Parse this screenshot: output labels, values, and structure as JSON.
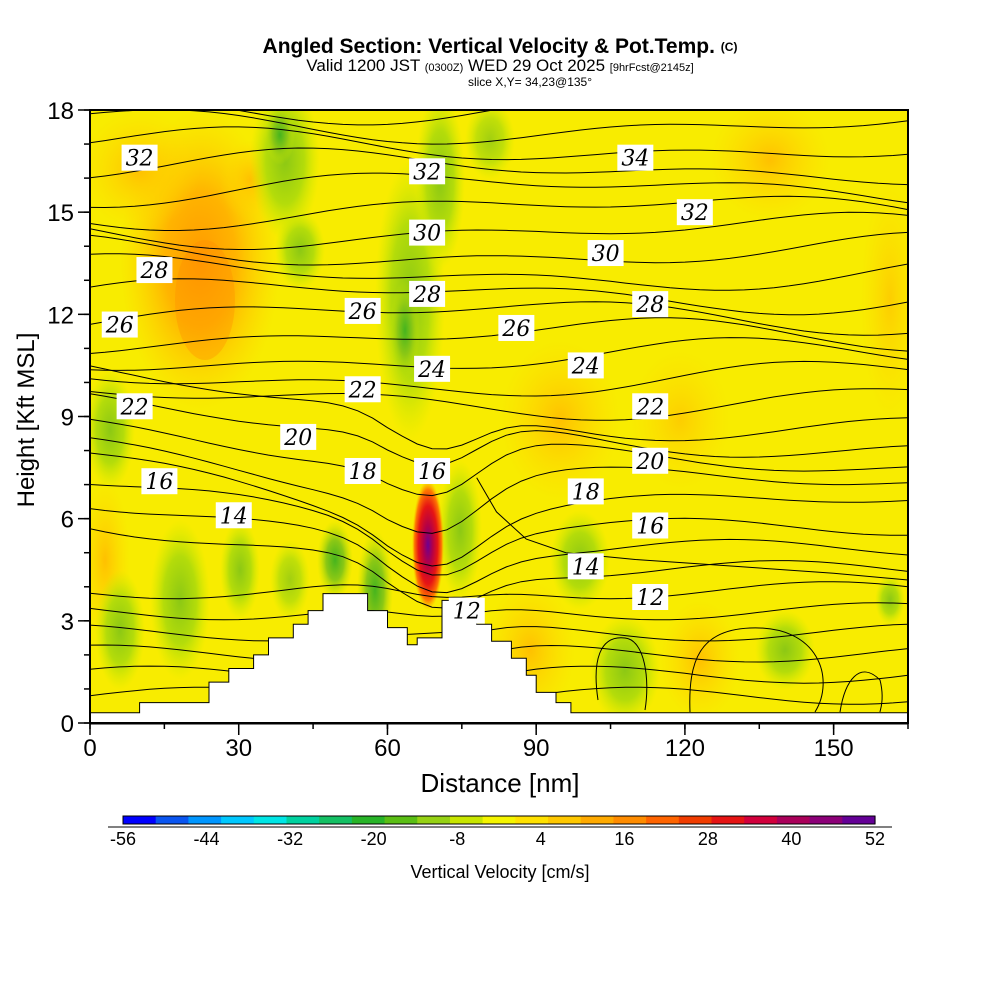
{
  "title": "Angled Section: Vertical Velocity & Pot.Temp.",
  "title_suffix": "(C)",
  "subtitle_prefix": "Valid 1200 JST",
  "subtitle_utc": "(0300Z)",
  "subtitle_date": "WED 29 Oct 2025",
  "subtitle_run": "[9hrFcst@2145z]",
  "slice_label": "slice X,Y= 34,23@135°",
  "chart_data": {
    "type": "heatmap",
    "title": "Angled Section: Vertical Velocity & Pot.Temp.",
    "xlabel": "Distance [nm]",
    "ylabel": "Height [Kft MSL]",
    "xlim": [
      0,
      165
    ],
    "ylim": [
      0,
      18
    ],
    "x_ticks": [
      "0",
      "30",
      "60",
      "90",
      "120",
      "150"
    ],
    "y_ticks": [
      "0",
      "3",
      "6",
      "9",
      "12",
      "15",
      "18"
    ],
    "colorbar": {
      "title": "Vertical Velocity [cm/s]",
      "tick_labels": [
        "-56",
        "-44",
        "-32",
        "-20",
        "-8",
        "4",
        "16",
        "28",
        "40",
        "52"
      ],
      "colors": [
        "#0000ff",
        "#0a55f0",
        "#0096ff",
        "#00c8ff",
        "#00e6e6",
        "#00d2a0",
        "#14c064",
        "#28b428",
        "#5abe14",
        "#96d214",
        "#c8e600",
        "#f5f500",
        "#ffe100",
        "#ffc800",
        "#ffaa00",
        "#ff8c00",
        "#ff6400",
        "#f03c00",
        "#e61414",
        "#d2003c",
        "#aa005a",
        "#8c0078",
        "#640096"
      ]
    },
    "terrain": [
      [
        0,
        0.3
      ],
      [
        10,
        0.3
      ],
      [
        10,
        0.6
      ],
      [
        24,
        0.6
      ],
      [
        24,
        1.2
      ],
      [
        28,
        1.2
      ],
      [
        28,
        1.6
      ],
      [
        33,
        1.6
      ],
      [
        33,
        2.0
      ],
      [
        36,
        2.0
      ],
      [
        36,
        2.5
      ],
      [
        41,
        2.5
      ],
      [
        41,
        2.9
      ],
      [
        44,
        2.9
      ],
      [
        44,
        3.3
      ],
      [
        47,
        3.3
      ],
      [
        47,
        3.8
      ],
      [
        56,
        3.8
      ],
      [
        56,
        3.3
      ],
      [
        60,
        3.3
      ],
      [
        60,
        2.8
      ],
      [
        64,
        2.8
      ],
      [
        64,
        2.3
      ],
      [
        66,
        2.3
      ],
      [
        66,
        2.5
      ],
      [
        71,
        2.5
      ],
      [
        71,
        3.6
      ],
      [
        78,
        3.6
      ],
      [
        78,
        2.9
      ],
      [
        81,
        2.9
      ],
      [
        81,
        2.4
      ],
      [
        85,
        2.4
      ],
      [
        85,
        1.9
      ],
      [
        88,
        1.9
      ],
      [
        88,
        1.4
      ],
      [
        90,
        1.4
      ],
      [
        90,
        0.9
      ],
      [
        94,
        0.9
      ],
      [
        94,
        0.6
      ],
      [
        97,
        0.6
      ],
      [
        97,
        0.3
      ],
      [
        165,
        0.3
      ]
    ],
    "contour_labels": [
      {
        "text": "32",
        "x": 10,
        "y": 16.6
      },
      {
        "text": "28",
        "x": 13,
        "y": 13.3
      },
      {
        "text": "26",
        "x": 6,
        "y": 11.7
      },
      {
        "text": "22",
        "x": 9,
        "y": 9.3
      },
      {
        "text": "20",
        "x": 42,
        "y": 8.4
      },
      {
        "text": "16",
        "x": 14,
        "y": 7.1
      },
      {
        "text": "14",
        "x": 29,
        "y": 6.1
      },
      {
        "text": "26",
        "x": 55,
        "y": 12.1
      },
      {
        "text": "22",
        "x": 55,
        "y": 9.8
      },
      {
        "text": "18",
        "x": 55,
        "y": 7.4
      },
      {
        "text": "32",
        "x": 68,
        "y": 16.2
      },
      {
        "text": "30",
        "x": 68,
        "y": 14.4
      },
      {
        "text": "28",
        "x": 68,
        "y": 12.6
      },
      {
        "text": "24",
        "x": 69,
        "y": 10.4
      },
      {
        "text": "16",
        "x": 69,
        "y": 7.4
      },
      {
        "text": "12",
        "x": 76,
        "y": 3.3
      },
      {
        "text": "26",
        "x": 86,
        "y": 11.6
      },
      {
        "text": "34",
        "x": 110,
        "y": 16.6
      },
      {
        "text": "32",
        "x": 122,
        "y": 15.0
      },
      {
        "text": "30",
        "x": 104,
        "y": 13.8
      },
      {
        "text": "28",
        "x": 113,
        "y": 12.3
      },
      {
        "text": "24",
        "x": 100,
        "y": 10.5
      },
      {
        "text": "22",
        "x": 113,
        "y": 9.3
      },
      {
        "text": "20",
        "x": 113,
        "y": 7.7
      },
      {
        "text": "18",
        "x": 100,
        "y": 6.8
      },
      {
        "text": "16",
        "x": 113,
        "y": 5.8
      },
      {
        "text": "14",
        "x": 100,
        "y": 4.6
      },
      {
        "text": "12",
        "x": 113,
        "y": 3.7
      }
    ]
  }
}
